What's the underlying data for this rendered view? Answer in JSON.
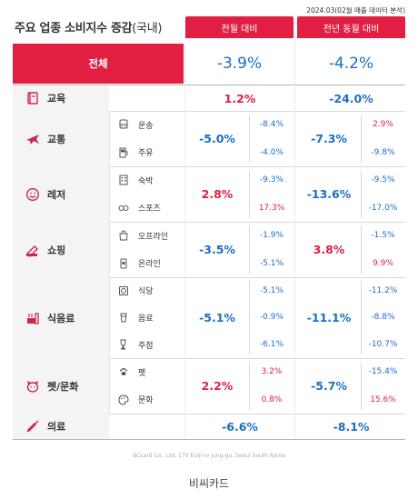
{
  "note": "2024.03(02월 매출 데이터 분석)",
  "title": "주요 업종 소비지수 증감",
  "title_sub": "(국내)",
  "headers": {
    "mom": "전월 대비",
    "yoy": "전년 동월 대비"
  },
  "total": {
    "label": "전체",
    "mom": "-3.9%",
    "yoy": "-4.2%"
  },
  "rows": [
    {
      "label": "교육",
      "icon": "book-icon",
      "mom": "1.2%",
      "yoy": "-24.0%"
    },
    {
      "label": "교통",
      "icon": "airplane-icon",
      "mom": "-5.0%",
      "yoy": "-7.3%",
      "subs": [
        {
          "label": "운송",
          "icon": "bus-icon",
          "mom": "-8.4%",
          "yoy": "2.9%"
        },
        {
          "label": "주유",
          "icon": "fuel-icon",
          "mom": "-4.0%",
          "yoy": "-9.8%"
        }
      ]
    },
    {
      "label": "레저",
      "icon": "smile-icon",
      "mom": "2.8%",
      "yoy": "-13.6%",
      "subs": [
        {
          "label": "숙박",
          "icon": "hotel-icon",
          "mom": "-9.3%",
          "yoy": "-9.5%"
        },
        {
          "label": "스포츠",
          "icon": "sports-icon",
          "mom": "17.3%",
          "yoy": "-17.0%"
        }
      ]
    },
    {
      "label": "쇼핑",
      "icon": "shopping-icon",
      "mom": "-3.5%",
      "yoy": "3.8%",
      "subs": [
        {
          "label": "오프라인",
          "icon": "bag-icon",
          "mom": "-1.9%",
          "yoy": "-1.5%"
        },
        {
          "label": "온라인",
          "icon": "online-icon",
          "mom": "-5.1%",
          "yoy": "9.9%"
        }
      ]
    },
    {
      "label": "식음료",
      "icon": "food-icon",
      "mom": "-5.1%",
      "yoy": "-11.1%",
      "subs": [
        {
          "label": "식당",
          "icon": "dish-icon",
          "mom": "-5.1%",
          "yoy": "-11.2%"
        },
        {
          "label": "음료",
          "icon": "cup-icon",
          "mom": "-0.9%",
          "yoy": "-8.8%"
        },
        {
          "label": "주점",
          "icon": "beer-icon",
          "mom": "-6.1%",
          "yoy": "-10.7%"
        }
      ]
    },
    {
      "label": "펫/문화",
      "icon": "pet-icon",
      "mom": "2.2%",
      "yoy": "-5.7%",
      "subs": [
        {
          "label": "펫",
          "icon": "paw-icon",
          "mom": "3.2%",
          "yoy": "-15.4%"
        },
        {
          "label": "문화",
          "icon": "palette-icon",
          "mom": "0.8%",
          "yoy": "15.6%"
        }
      ]
    },
    {
      "label": "의료",
      "icon": "syringe-icon",
      "mom": "-6.6%",
      "yoy": "-8.1%"
    }
  ],
  "footer": "BCcard Co., Ltd.  170 Eulji-ro Jung-gu, Seoul South Korea",
  "caption": "비씨카드",
  "colors": {
    "accent": "#e01f43",
    "positive": "#e01f43",
    "negative": "#1a6fc4"
  }
}
